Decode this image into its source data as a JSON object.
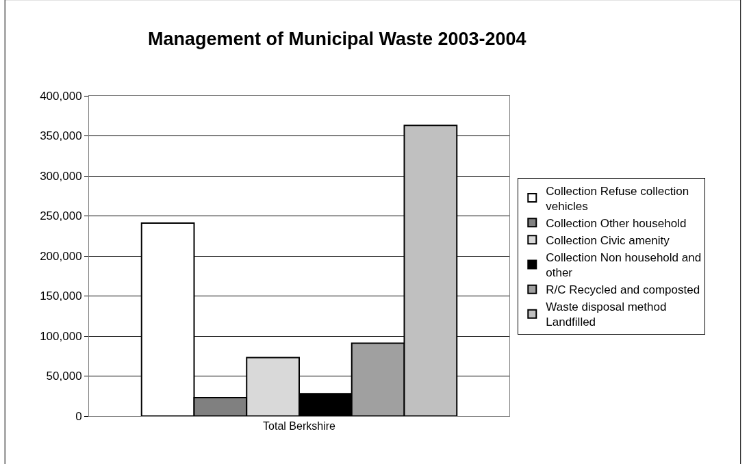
{
  "chart_data": {
    "type": "bar",
    "title": "Management of Municipal Waste 2003-2004",
    "categories": [
      "Total Berkshire"
    ],
    "series": [
      {
        "name": "Collection Refuse collection vehicles",
        "color": "#ffffff",
        "values": [
          241000
        ]
      },
      {
        "name": "Collection Other household",
        "color": "#808080",
        "values": [
          23000
        ]
      },
      {
        "name": "Collection Civic amenity",
        "color": "#d9d9d9",
        "values": [
          73000
        ]
      },
      {
        "name": "Collection Non household and other",
        "color": "#000000",
        "values": [
          28000
        ]
      },
      {
        "name": "R/C Recycled and composted",
        "color": "#a0a0a0",
        "values": [
          91000
        ]
      },
      {
        "name": "Waste disposal method Landfilled",
        "color": "#c0c0c0",
        "values": [
          363000
        ]
      }
    ],
    "ylim": [
      0,
      400000
    ],
    "yticks": [
      {
        "value": 0,
        "label": "0"
      },
      {
        "value": 50000,
        "label": "50,000"
      },
      {
        "value": 100000,
        "label": "100,000"
      },
      {
        "value": 150000,
        "label": "150,000"
      },
      {
        "value": 200000,
        "label": "200,000"
      },
      {
        "value": 250000,
        "label": "250,000"
      },
      {
        "value": 300000,
        "label": "300,000"
      },
      {
        "value": 350000,
        "label": "350,000"
      },
      {
        "value": 400000,
        "label": "400,000"
      }
    ],
    "grid": "y",
    "legend": "right"
  }
}
